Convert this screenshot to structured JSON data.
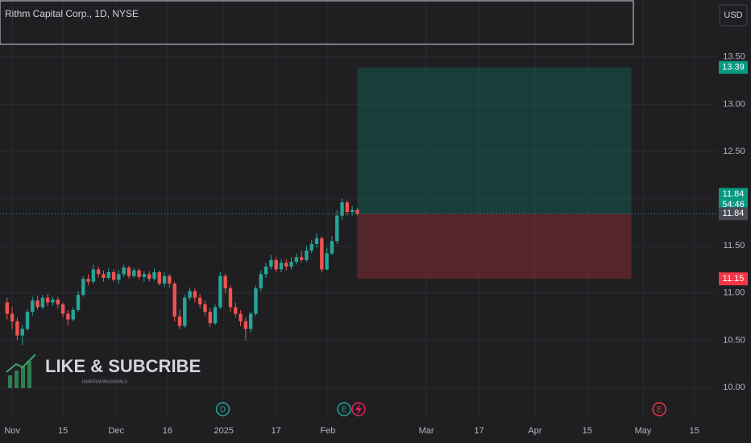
{
  "chart_data": {
    "type": "candlestick",
    "title": "Rithm Capital Corp., 1D, NYSE",
    "currency": "USD",
    "x": [
      -1,
      0,
      1,
      2,
      3,
      4,
      5,
      6,
      7,
      8,
      9,
      10,
      11,
      12,
      13,
      14,
      15,
      16,
      17,
      18,
      19,
      20,
      21,
      22,
      23,
      24,
      25,
      26,
      27,
      28,
      29,
      30,
      31,
      32,
      33,
      34,
      35,
      36,
      37,
      38,
      39,
      40,
      41,
      42,
      43,
      44,
      45,
      46,
      47,
      48,
      49,
      50,
      51,
      52,
      53,
      54,
      55,
      56,
      57,
      58,
      59,
      60,
      61,
      62,
      63,
      64,
      65,
      66,
      67,
      68
    ],
    "open": [
      10.9,
      10.78,
      10.7,
      10.55,
      10.62,
      10.8,
      10.92,
      10.85,
      10.95,
      10.9,
      10.93,
      10.88,
      10.78,
      10.72,
      10.82,
      10.98,
      11.15,
      11.12,
      11.25,
      11.2,
      11.16,
      11.22,
      11.14,
      11.2,
      11.27,
      11.18,
      11.24,
      11.17,
      11.2,
      11.15,
      11.22,
      11.1,
      11.18,
      11.1,
      10.75,
      10.65,
      10.95,
      11.02,
      10.95,
      10.88,
      10.8,
      10.68,
      10.85,
      11.18,
      11.05,
      10.85,
      10.78,
      10.7,
      10.62,
      10.78,
      11.05,
      11.2,
      11.28,
      11.35,
      11.25,
      11.32,
      11.28,
      11.33,
      11.38,
      11.35,
      11.45,
      11.52,
      11.58,
      11.25,
      11.42,
      11.55,
      11.82,
      11.96,
      11.86,
      11.88
    ],
    "high": [
      10.95,
      10.85,
      10.74,
      10.66,
      10.83,
      10.96,
      10.97,
      10.98,
      10.99,
      10.96,
      10.96,
      10.9,
      10.82,
      10.85,
      11.02,
      11.18,
      11.2,
      11.3,
      11.28,
      11.24,
      11.26,
      11.25,
      11.24,
      11.3,
      11.29,
      11.27,
      11.26,
      11.23,
      11.23,
      11.26,
      11.24,
      11.22,
      11.2,
      11.12,
      10.82,
      10.98,
      11.06,
      11.05,
      10.99,
      10.92,
      10.84,
      10.88,
      11.22,
      11.2,
      11.08,
      10.9,
      10.82,
      10.74,
      10.8,
      11.08,
      11.24,
      11.32,
      11.4,
      11.38,
      11.36,
      11.36,
      11.38,
      11.42,
      11.45,
      11.5,
      11.56,
      11.63,
      11.6,
      11.48,
      11.6,
      11.88,
      12.0,
      11.98,
      11.92,
      11.9
    ],
    "low": [
      10.72,
      10.62,
      10.5,
      10.45,
      10.6,
      10.76,
      10.82,
      10.83,
      10.86,
      10.87,
      10.84,
      10.74,
      10.66,
      10.7,
      10.8,
      10.96,
      11.08,
      11.1,
      11.16,
      11.12,
      11.14,
      11.12,
      11.1,
      11.17,
      11.15,
      11.16,
      11.14,
      11.12,
      11.12,
      11.13,
      11.08,
      11.06,
      11.06,
      10.7,
      10.62,
      10.63,
      10.92,
      10.9,
      10.84,
      10.76,
      10.64,
      10.66,
      10.83,
      11.0,
      10.8,
      10.74,
      10.65,
      10.5,
      10.58,
      10.76,
      11.02,
      11.16,
      11.25,
      11.22,
      11.22,
      11.24,
      11.25,
      11.3,
      11.32,
      11.33,
      11.42,
      11.48,
      11.22,
      11.24,
      11.4,
      11.52,
      11.78,
      11.82,
      11.82,
      11.82
    ],
    "close": [
      10.78,
      10.7,
      10.55,
      10.62,
      10.8,
      10.92,
      10.85,
      10.95,
      10.9,
      10.93,
      10.88,
      10.78,
      10.72,
      10.82,
      10.98,
      11.15,
      11.12,
      11.25,
      11.2,
      11.16,
      11.22,
      11.14,
      11.2,
      11.27,
      11.18,
      11.24,
      11.17,
      11.2,
      11.15,
      11.22,
      11.1,
      11.18,
      11.1,
      10.75,
      10.65,
      10.95,
      11.02,
      10.95,
      10.88,
      10.8,
      10.68,
      10.85,
      11.18,
      11.05,
      10.85,
      10.78,
      10.7,
      10.62,
      10.78,
      11.05,
      11.2,
      11.28,
      11.35,
      11.25,
      11.32,
      11.28,
      11.33,
      11.38,
      11.35,
      11.45,
      11.52,
      11.58,
      11.25,
      11.42,
      11.55,
      11.82,
      11.96,
      11.86,
      11.88,
      11.84
    ],
    "up_color": "#26a69a",
    "down_color": "#ef5350",
    "countdown": "54:46",
    "position": {
      "x_start": 68,
      "x_end": 122,
      "entry": 11.84,
      "target": 13.39,
      "stop": 11.15
    },
    "events": [
      {
        "label": "D",
        "x": 41.5
      },
      {
        "label": "E",
        "x": 65.4
      },
      {
        "label": "E",
        "x": 127.5
      }
    ],
    "watermark": {
      "text": "LIKE & SUBCRIBE",
      "subtext": "ISMATRADINGSIGNALS"
    },
    "xlim": [
      -2.4,
      138.9
    ],
    "xticks": [
      {
        "value": 0,
        "label": "Nov"
      },
      {
        "value": 10,
        "label": "15"
      },
      {
        "value": 20.5,
        "label": "Dec"
      },
      {
        "value": 30.6,
        "label": "16"
      },
      {
        "value": 41.7,
        "label": "2025"
      },
      {
        "value": 52,
        "label": "17"
      },
      {
        "value": 62.2,
        "label": "Feb"
      },
      {
        "value": 81.6,
        "label": "Mar"
      },
      {
        "value": 92,
        "label": "17"
      },
      {
        "value": 103,
        "label": "Apr"
      },
      {
        "value": 113.3,
        "label": "15"
      },
      {
        "value": 124.3,
        "label": "May"
      },
      {
        "value": 134.4,
        "label": "15"
      }
    ],
    "ylim": [
      9.667,
      14.104
    ],
    "yticks": [
      {
        "value": 10,
        "label": "10.00"
      },
      {
        "value": 10.5,
        "label": "10.50"
      },
      {
        "value": 11,
        "label": "11.00"
      },
      {
        "value": 11.5,
        "label": "11.50"
      },
      {
        "value": 12,
        "label": "12.00"
      },
      {
        "value": 12.5,
        "label": "12.50"
      },
      {
        "value": 13,
        "label": "13.00"
      },
      {
        "value": 13.5,
        "label": "13.50"
      }
    ],
    "grid": true
  }
}
